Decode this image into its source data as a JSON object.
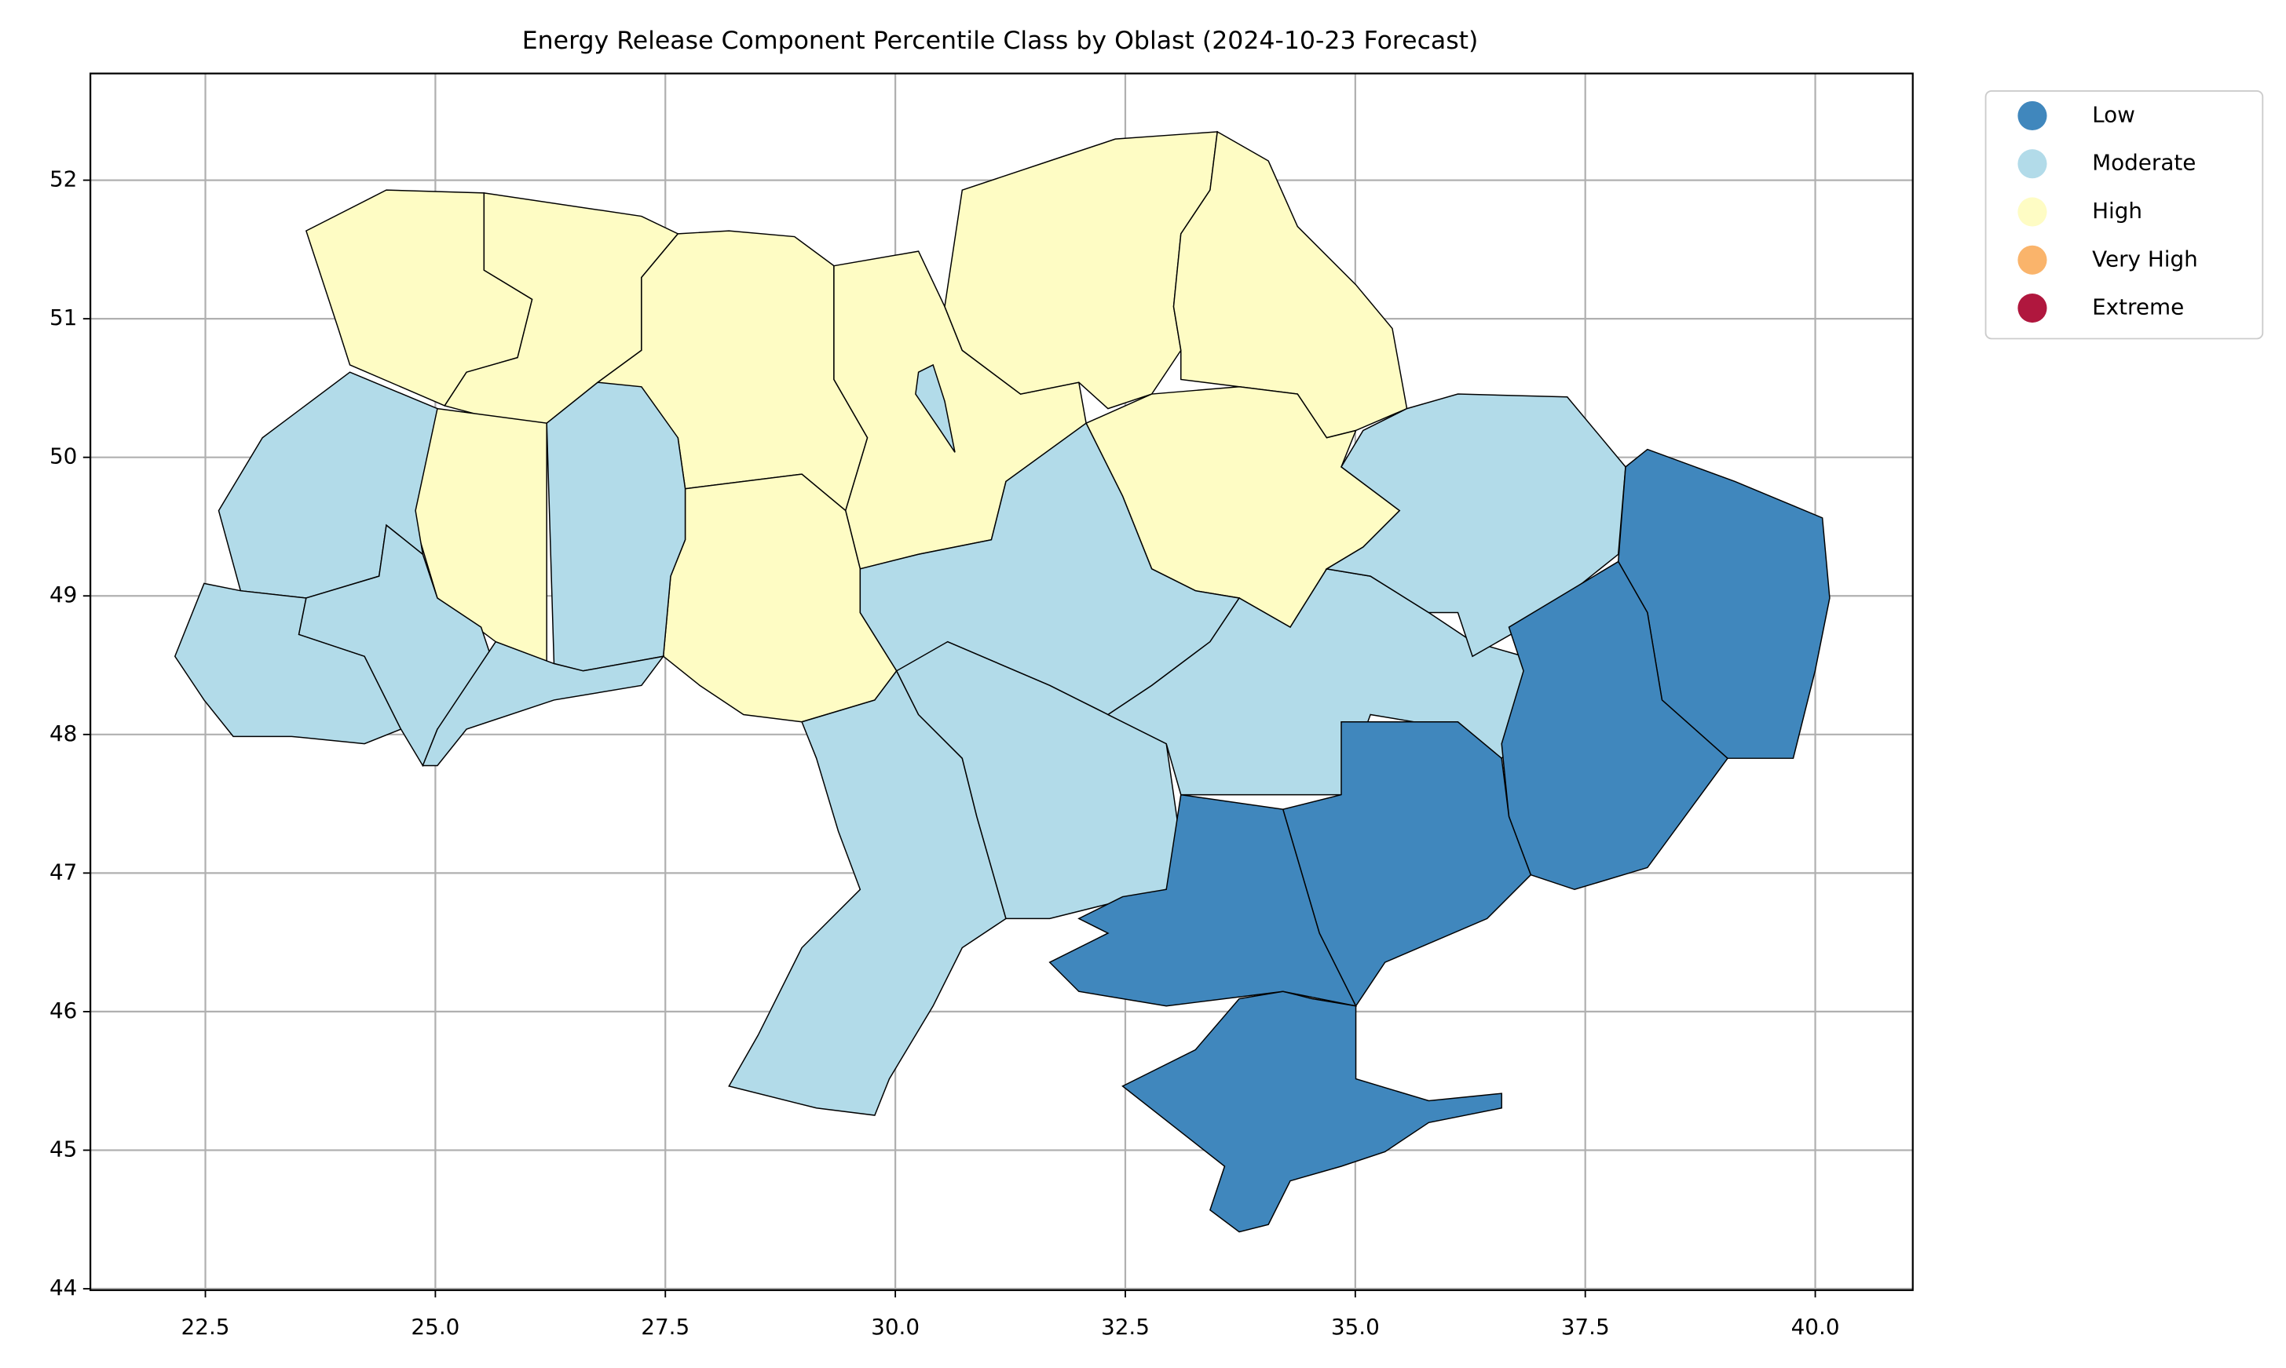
{
  "chart_data": {
    "type": "choropleth",
    "title": "Energy Release Component Percentile Class by Oblast (2024-10-23 Forecast)",
    "series": [
      {
        "name": "Low",
        "color": "#4087bd"
      },
      {
        "name": "Moderate",
        "color": "#b2dbe9"
      },
      {
        "name": "High",
        "color": "#fefcc4"
      },
      {
        "name": "Very High",
        "color": "#fab46b"
      },
      {
        "name": "Extreme",
        "color": "#b0173e"
      }
    ],
    "xlim": [
      21.25,
      41.06
    ],
    "ylim": [
      43.99,
      52.77
    ],
    "xticks": [
      22.5,
      {
        "value": 25,
        "label": "25.0"
      },
      27.5,
      {
        "value": 30,
        "label": "30.0"
      },
      32.5,
      {
        "value": 35,
        "label": "35.0"
      },
      37.5,
      {
        "value": 40,
        "label": "40.0"
      }
    ],
    "yticks": [
      44,
      45,
      46,
      47,
      48,
      49,
      50,
      51,
      52
    ],
    "grid": true,
    "legend": "outside-upper-right"
  }
}
